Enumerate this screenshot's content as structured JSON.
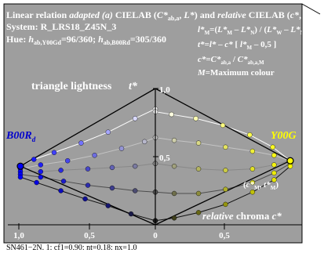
{
  "chart_data": {
    "type": "line",
    "header": {
      "line1": {
        "a": "Linear relation ",
        "b": "adapted (a)",
        "c": " CIELAB (",
        "d": "C*",
        "e": "ab,a",
        "f": ", ",
        "g": "L*",
        "h": ") and ",
        "i": "relative",
        "j": " CIELAB (",
        "k": "c*",
        "l": ", ",
        "m": "t*",
        "n": ")"
      },
      "line2": "System: R_LRS18_Z45N_3",
      "line3": {
        "a": "Hue: ",
        "b": "h",
        "c": "ab,Y00Gd",
        "d": "=96/360; ",
        "e": "h",
        "f": "ab,B00Rd",
        "g": "=305/360"
      }
    },
    "formulas": {
      "f1": {
        "a": "l*",
        "b": "M",
        "c": "=(",
        "d": "L*",
        "e": "M",
        "f": " – ",
        "g": "L*",
        "h": "N",
        "i": ") / (",
        "j": "L*",
        "k": "W",
        "l": " – ",
        "m": "L*",
        "n": "N",
        "o": ")"
      },
      "f2": {
        "a": "t*",
        "b": "=",
        "c": "l*",
        "d": " – ",
        "e": "c*",
        "f": " [ ",
        "g": "l*",
        "h": "M",
        "i": " – 0,5 ]"
      },
      "f3": {
        "a": "c*",
        "b": "=",
        "c": "C*",
        "d": "ab,a",
        "e": " / ",
        "f": "C*",
        "g": "ab,a,M"
      },
      "f4": {
        "a": "M",
        "b": "=Maximum colour"
      }
    },
    "labels": {
      "triangle": "triangle lightness",
      "t_axis": "t*",
      "left_hue": "B00R",
      "left_hue_sub": "d",
      "right_hue": "Y00G",
      "point_a": "(",
      "point_b": "c*",
      "point_c": "M",
      "point_d": ", ",
      "point_e": "t*",
      "point_f": "M",
      "point_g": ")",
      "chroma_rel": "relative",
      "chroma_word": " chroma ",
      "chroma_sym": "c*"
    },
    "footer": "SN461−2N. 1: cf1=0.90: nt=0.18: nx=1.0",
    "x_ticks": [
      "1,0",
      "0,5",
      "0",
      "0,5"
    ],
    "y_ticks": [
      "1,0",
      "0,5"
    ],
    "x_range": [
      -1.0,
      1.0
    ],
    "y_range": [
      0.0,
      1.0
    ],
    "colors": {
      "background": "#9e9e9e",
      "yellow": "#ffff00",
      "blue": "#0000ff",
      "text_white": "#ffffff",
      "label_yellow": "#ffff00",
      "label_blue": "#0000cc"
    },
    "left_maximum": {
      "c": -1.0,
      "t": 0.43
    },
    "right_maximum": {
      "c": 1.0,
      "t": 0.47
    },
    "left_series": [
      {
        "name": "",
        "points": [
          {
            "c": -1.0,
            "t": 0.43
          },
          {
            "c": -0.9,
            "t": 0.48
          },
          {
            "c": -0.75,
            "t": 0.53
          },
          {
            "c": -0.55,
            "t": 0.6
          },
          {
            "c": -0.35,
            "t": 0.68
          },
          {
            "c": -0.15,
            "t": 0.78
          },
          {
            "c": 0.0,
            "t": 0.85
          }
        ]
      },
      {
        "name": "",
        "points": [
          {
            "c": -1.0,
            "t": 0.41
          },
          {
            "c": -0.85,
            "t": 0.44
          },
          {
            "c": -0.65,
            "t": 0.47
          },
          {
            "c": -0.45,
            "t": 0.51
          },
          {
            "c": -0.25,
            "t": 0.56
          },
          {
            "c": -0.08,
            "t": 0.61
          },
          {
            "c": 0.0,
            "t": 0.64
          }
        ]
      },
      {
        "name": "",
        "points": [
          {
            "c": -1.0,
            "t": 0.39
          },
          {
            "c": -0.85,
            "t": 0.39
          },
          {
            "c": -0.7,
            "t": 0.4
          },
          {
            "c": -0.5,
            "t": 0.41
          },
          {
            "c": -0.32,
            "t": 0.42
          },
          {
            "c": -0.15,
            "t": 0.43
          },
          {
            "c": 0.0,
            "t": 0.45
          }
        ]
      },
      {
        "name": "",
        "points": [
          {
            "c": -1.0,
            "t": 0.37
          },
          {
            "c": -0.85,
            "t": 0.35
          },
          {
            "c": -0.68,
            "t": 0.32
          },
          {
            "c": -0.5,
            "t": 0.29
          },
          {
            "c": -0.32,
            "t": 0.27
          },
          {
            "c": -0.15,
            "t": 0.25
          },
          {
            "c": 0.0,
            "t": 0.24
          }
        ]
      },
      {
        "name": "",
        "points": [
          {
            "c": -1.0,
            "t": 0.35
          },
          {
            "c": -0.88,
            "t": 0.31
          },
          {
            "c": -0.7,
            "t": 0.25
          },
          {
            "c": -0.52,
            "t": 0.19
          },
          {
            "c": -0.35,
            "t": 0.14
          },
          {
            "c": -0.18,
            "t": 0.08
          },
          {
            "c": 0.0,
            "t": 0.03
          }
        ]
      }
    ],
    "right_series": [
      {
        "name": "",
        "points": [
          {
            "c": 0.0,
            "t": 0.83
          },
          {
            "c": 0.12,
            "t": 0.81
          },
          {
            "c": 0.3,
            "t": 0.78
          },
          {
            "c": 0.5,
            "t": 0.73
          },
          {
            "c": 0.7,
            "t": 0.66
          },
          {
            "c": 0.87,
            "t": 0.57
          },
          {
            "c": 1.0,
            "t": 0.47
          }
        ]
      },
      {
        "name": "",
        "points": [
          {
            "c": 0.0,
            "t": 0.64
          },
          {
            "c": 0.14,
            "t": 0.62
          },
          {
            "c": 0.32,
            "t": 0.6
          },
          {
            "c": 0.52,
            "t": 0.57
          },
          {
            "c": 0.72,
            "t": 0.54
          },
          {
            "c": 0.88,
            "t": 0.51
          },
          {
            "c": 1.0,
            "t": 0.47
          }
        ]
      },
      {
        "name": "",
        "points": [
          {
            "c": 0.0,
            "t": 0.45
          },
          {
            "c": 0.14,
            "t": 0.43
          },
          {
            "c": 0.32,
            "t": 0.41
          },
          {
            "c": 0.52,
            "t": 0.4
          },
          {
            "c": 0.72,
            "t": 0.41
          },
          {
            "c": 0.88,
            "t": 0.44
          },
          {
            "c": 1.0,
            "t": 0.47
          }
        ]
      },
      {
        "name": "",
        "points": [
          {
            "c": 0.0,
            "t": 0.24
          },
          {
            "c": 0.14,
            "t": 0.23
          },
          {
            "c": 0.32,
            "t": 0.23
          },
          {
            "c": 0.52,
            "t": 0.26
          },
          {
            "c": 0.72,
            "t": 0.31
          },
          {
            "c": 0.88,
            "t": 0.38
          },
          {
            "c": 1.0,
            "t": 0.45
          }
        ]
      },
      {
        "name": "",
        "points": [
          {
            "c": 0.0,
            "t": 0.03
          },
          {
            "c": 0.14,
            "t": 0.05
          },
          {
            "c": 0.32,
            "t": 0.09
          },
          {
            "c": 0.52,
            "t": 0.15
          },
          {
            "c": 0.72,
            "t": 0.24
          },
          {
            "c": 0.88,
            "t": 0.33
          },
          {
            "c": 1.0,
            "t": 0.43
          }
        ]
      }
    ]
  }
}
